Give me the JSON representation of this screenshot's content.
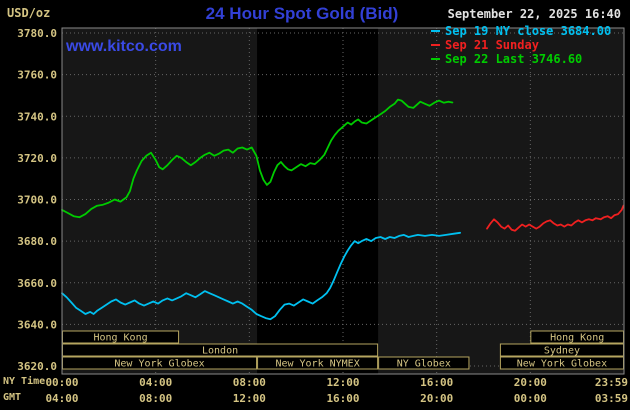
{
  "header": {
    "unit_label": "USD/oz",
    "title": "24 Hour Spot Gold (Bid)",
    "datetime": "September 22, 2025 16:40"
  },
  "watermark": "www.kitco.com",
  "legend": [
    {
      "label": "Sep 19 NY close 3684.00",
      "color": "#00c0f0"
    },
    {
      "label": "Sep 21 Sunday",
      "color": "#f02020"
    },
    {
      "label": "Sep 22 Last 3746.60",
      "color": "#00cc00"
    }
  ],
  "axes": {
    "ny_time_label": "NY Time",
    "gmt_label": "GMT"
  },
  "colors": {
    "background": "#000000",
    "plot_bg": "#171717",
    "band": "#000000",
    "grid": "#666666",
    "border": "#8a8a8a",
    "axis_text": "#d4c483",
    "session_box": "#b5a55f",
    "title_blue": "#3240d6",
    "watermark_blue": "#3a4ae6",
    "date_text": "#e2e2e2"
  },
  "chart_data": {
    "type": "line",
    "title": "24 Hour Spot Gold (Bid)",
    "ylabel": "USD/oz",
    "xlim": [
      0,
      24
    ],
    "ylim": [
      3620,
      3780
    ],
    "y_tick_step": 20,
    "grid": true,
    "legend_position": "top-right",
    "nymex_band_hours": [
      8.33,
      13.5
    ],
    "y_ticks": [
      {
        "value": 3780,
        "label": "3780.0"
      },
      {
        "value": 3760,
        "label": "3760.0"
      },
      {
        "value": 3740,
        "label": "3740.0"
      },
      {
        "value": 3720,
        "label": "3720.0"
      },
      {
        "value": 3700,
        "label": "3700.0"
      },
      {
        "value": 3680,
        "label": "3680.0"
      },
      {
        "value": 3660,
        "label": "3660.0"
      },
      {
        "value": 3640,
        "label": "3640.0"
      },
      {
        "value": 3620,
        "label": "3620.0"
      }
    ],
    "x_ticks": [
      {
        "hour": 0,
        "ny": "00:00",
        "gmt": "04:00"
      },
      {
        "hour": 4,
        "ny": "04:00",
        "gmt": "08:00"
      },
      {
        "hour": 8,
        "ny": "08:00",
        "gmt": "12:00"
      },
      {
        "hour": 12,
        "ny": "12:00",
        "gmt": "16:00"
      },
      {
        "hour": 16,
        "ny": "16:00",
        "gmt": "20:00"
      },
      {
        "hour": 20,
        "ny": "20:00",
        "gmt": "00:00"
      },
      {
        "hour": 24,
        "ny": "23:59",
        "gmt": "03:59"
      }
    ],
    "sessions": [
      {
        "row": 0,
        "label": "Hong Kong",
        "start": 0,
        "end": 5
      },
      {
        "row": 0,
        "label": "Hong Kong",
        "start": 20,
        "end": 24
      },
      {
        "row": 1,
        "label": "London",
        "start": 0,
        "end": 13.5
      },
      {
        "row": 1,
        "label": "Sydney",
        "start": 18.7,
        "end": 24
      },
      {
        "row": 2,
        "label": "New York Globex",
        "start": 0,
        "end": 8.33
      },
      {
        "row": 2,
        "label": "New York NYMEX",
        "start": 8.33,
        "end": 13.5
      },
      {
        "row": 2,
        "label": "NY Globex",
        "start": 13.5,
        "end": 17.4
      },
      {
        "row": 2,
        "label": "New York Globex",
        "start": 18.7,
        "end": 24
      }
    ],
    "series": [
      {
        "id": "sep19",
        "name": "Sep 19 NY close",
        "color": "#00c0f0",
        "close": 3684.0,
        "points": [
          [
            0,
            3655
          ],
          [
            0.2,
            3653
          ],
          [
            0.4,
            3650.5
          ],
          [
            0.6,
            3648
          ],
          [
            0.8,
            3646.5
          ],
          [
            1,
            3645
          ],
          [
            1.2,
            3646
          ],
          [
            1.35,
            3645
          ],
          [
            1.5,
            3646.5
          ],
          [
            1.7,
            3648
          ],
          [
            1.9,
            3649.5
          ],
          [
            2.1,
            3651
          ],
          [
            2.3,
            3652
          ],
          [
            2.5,
            3650.5
          ],
          [
            2.7,
            3649.5
          ],
          [
            2.9,
            3650.5
          ],
          [
            3.1,
            3651.5
          ],
          [
            3.3,
            3650
          ],
          [
            3.5,
            3649
          ],
          [
            3.7,
            3650
          ],
          [
            3.9,
            3651
          ],
          [
            4.1,
            3650
          ],
          [
            4.3,
            3651.5
          ],
          [
            4.5,
            3652.5
          ],
          [
            4.7,
            3651.5
          ],
          [
            4.9,
            3652.5
          ],
          [
            5.1,
            3653.5
          ],
          [
            5.3,
            3655
          ],
          [
            5.5,
            3654
          ],
          [
            5.7,
            3653
          ],
          [
            5.9,
            3654.5
          ],
          [
            6.1,
            3656
          ],
          [
            6.3,
            3655
          ],
          [
            6.5,
            3654
          ],
          [
            6.7,
            3653
          ],
          [
            6.9,
            3652
          ],
          [
            7.1,
            3651
          ],
          [
            7.3,
            3650
          ],
          [
            7.5,
            3651
          ],
          [
            7.7,
            3650
          ],
          [
            7.9,
            3648.5
          ],
          [
            8.1,
            3647
          ],
          [
            8.3,
            3645
          ],
          [
            8.5,
            3644
          ],
          [
            8.7,
            3643
          ],
          [
            8.9,
            3642.5
          ],
          [
            9.1,
            3644
          ],
          [
            9.3,
            3647
          ],
          [
            9.5,
            3649.5
          ],
          [
            9.7,
            3650
          ],
          [
            9.9,
            3649
          ],
          [
            10.1,
            3650.5
          ],
          [
            10.3,
            3652
          ],
          [
            10.5,
            3651
          ],
          [
            10.7,
            3650
          ],
          [
            10.9,
            3651.5
          ],
          [
            11.1,
            3653
          ],
          [
            11.3,
            3655
          ],
          [
            11.45,
            3657.5
          ],
          [
            11.6,
            3661
          ],
          [
            11.75,
            3665
          ],
          [
            11.9,
            3669
          ],
          [
            12.05,
            3672.5
          ],
          [
            12.2,
            3675.5
          ],
          [
            12.35,
            3678
          ],
          [
            12.5,
            3680
          ],
          [
            12.65,
            3679
          ],
          [
            12.8,
            3680
          ],
          [
            13,
            3681
          ],
          [
            13.2,
            3680
          ],
          [
            13.4,
            3681.5
          ],
          [
            13.6,
            3682
          ],
          [
            13.8,
            3681
          ],
          [
            14,
            3682
          ],
          [
            14.2,
            3681.5
          ],
          [
            14.4,
            3682.5
          ],
          [
            14.6,
            3683
          ],
          [
            14.8,
            3682
          ],
          [
            15,
            3682.5
          ],
          [
            15.2,
            3683
          ],
          [
            15.5,
            3682.5
          ],
          [
            15.8,
            3683
          ],
          [
            16.1,
            3682.5
          ],
          [
            16.4,
            3683
          ],
          [
            16.7,
            3683.5
          ],
          [
            17,
            3684
          ]
        ]
      },
      {
        "id": "sep21",
        "name": "Sep 21 Sunday",
        "color": "#f02020",
        "points": [
          [
            18.15,
            3686
          ],
          [
            18.3,
            3688.5
          ],
          [
            18.45,
            3690.5
          ],
          [
            18.6,
            3689
          ],
          [
            18.75,
            3687
          ],
          [
            18.9,
            3686
          ],
          [
            19.05,
            3687.5
          ],
          [
            19.2,
            3685.5
          ],
          [
            19.35,
            3685
          ],
          [
            19.5,
            3686.5
          ],
          [
            19.65,
            3688
          ],
          [
            19.8,
            3687
          ],
          [
            19.95,
            3688
          ],
          [
            20.1,
            3687
          ],
          [
            20.25,
            3686
          ],
          [
            20.4,
            3687
          ],
          [
            20.55,
            3688.5
          ],
          [
            20.7,
            3689.5
          ],
          [
            20.85,
            3690
          ],
          [
            21,
            3688.5
          ],
          [
            21.15,
            3687.5
          ],
          [
            21.3,
            3688
          ],
          [
            21.45,
            3687
          ],
          [
            21.6,
            3688
          ],
          [
            21.75,
            3687.5
          ],
          [
            21.9,
            3689
          ],
          [
            22.05,
            3690
          ],
          [
            22.2,
            3689
          ],
          [
            22.35,
            3690
          ],
          [
            22.5,
            3690.5
          ],
          [
            22.65,
            3690
          ],
          [
            22.8,
            3691
          ],
          [
            23,
            3690.5
          ],
          [
            23.15,
            3691.5
          ],
          [
            23.3,
            3692
          ],
          [
            23.45,
            3691
          ],
          [
            23.6,
            3692.5
          ],
          [
            23.75,
            3693
          ],
          [
            23.9,
            3695
          ],
          [
            23.98,
            3697
          ]
        ]
      },
      {
        "id": "sep22",
        "name": "Sep 22 Last",
        "color": "#00cc00",
        "last": 3746.6,
        "points": [
          [
            0,
            3695
          ],
          [
            0.25,
            3693.5
          ],
          [
            0.5,
            3692
          ],
          [
            0.75,
            3691.5
          ],
          [
            1,
            3693
          ],
          [
            1.25,
            3695.5
          ],
          [
            1.5,
            3697
          ],
          [
            1.75,
            3697.5
          ],
          [
            2,
            3698.5
          ],
          [
            2.25,
            3700
          ],
          [
            2.5,
            3699
          ],
          [
            2.75,
            3701
          ],
          [
            2.9,
            3704
          ],
          [
            3.05,
            3710
          ],
          [
            3.2,
            3714
          ],
          [
            3.4,
            3718.5
          ],
          [
            3.6,
            3721
          ],
          [
            3.8,
            3722.5
          ],
          [
            4,
            3719
          ],
          [
            4.15,
            3715.5
          ],
          [
            4.3,
            3714.5
          ],
          [
            4.5,
            3716.5
          ],
          [
            4.7,
            3719
          ],
          [
            4.9,
            3721
          ],
          [
            5.1,
            3720
          ],
          [
            5.3,
            3718
          ],
          [
            5.5,
            3716.5
          ],
          [
            5.7,
            3718
          ],
          [
            5.9,
            3720
          ],
          [
            6.1,
            3721.5
          ],
          [
            6.3,
            3722.5
          ],
          [
            6.5,
            3721
          ],
          [
            6.7,
            3722
          ],
          [
            6.9,
            3723.5
          ],
          [
            7.1,
            3724
          ],
          [
            7.3,
            3722.5
          ],
          [
            7.5,
            3724.5
          ],
          [
            7.7,
            3725
          ],
          [
            7.9,
            3724
          ],
          [
            8.1,
            3725
          ],
          [
            8.3,
            3721
          ],
          [
            8.45,
            3714
          ],
          [
            8.6,
            3709.5
          ],
          [
            8.75,
            3707
          ],
          [
            8.9,
            3708.5
          ],
          [
            9.05,
            3713
          ],
          [
            9.2,
            3716.5
          ],
          [
            9.35,
            3718
          ],
          [
            9.5,
            3716
          ],
          [
            9.65,
            3714.5
          ],
          [
            9.8,
            3714
          ],
          [
            10,
            3715.5
          ],
          [
            10.2,
            3717
          ],
          [
            10.4,
            3716
          ],
          [
            10.6,
            3717.5
          ],
          [
            10.8,
            3717
          ],
          [
            11,
            3719
          ],
          [
            11.2,
            3721.5
          ],
          [
            11.35,
            3725
          ],
          [
            11.5,
            3728.5
          ],
          [
            11.65,
            3731
          ],
          [
            11.8,
            3733
          ],
          [
            12,
            3735
          ],
          [
            12.2,
            3737
          ],
          [
            12.35,
            3736
          ],
          [
            12.5,
            3737.5
          ],
          [
            12.65,
            3738.5
          ],
          [
            12.8,
            3737
          ],
          [
            13,
            3736.5
          ],
          [
            13.2,
            3738
          ],
          [
            13.4,
            3739.5
          ],
          [
            13.6,
            3741
          ],
          [
            13.8,
            3742.5
          ],
          [
            14,
            3744.5
          ],
          [
            14.2,
            3746
          ],
          [
            14.35,
            3748
          ],
          [
            14.5,
            3747.5
          ],
          [
            14.65,
            3746
          ],
          [
            14.8,
            3744.5
          ],
          [
            15,
            3744
          ],
          [
            15.15,
            3745.5
          ],
          [
            15.3,
            3747
          ],
          [
            15.5,
            3746
          ],
          [
            15.7,
            3745
          ],
          [
            15.9,
            3746.5
          ],
          [
            16.1,
            3747.5
          ],
          [
            16.3,
            3746.5
          ],
          [
            16.5,
            3747
          ],
          [
            16.67,
            3746.6
          ]
        ]
      }
    ]
  }
}
